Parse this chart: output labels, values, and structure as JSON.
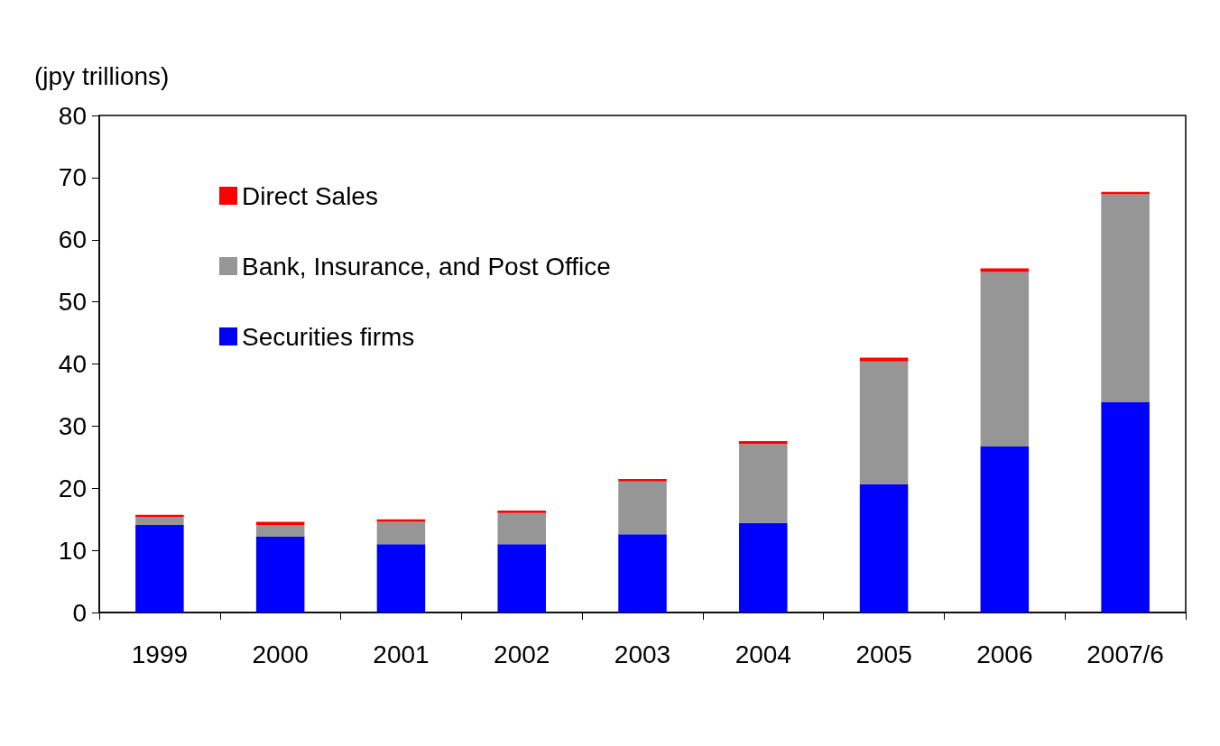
{
  "chart_data": {
    "type": "bar",
    "stacked": true,
    "ylabel": "(jpy trillions)",
    "categories": [
      "1999",
      "2000",
      "2001",
      "2002",
      "2003",
      "2004",
      "2005",
      "2006",
      "2007/6"
    ],
    "series": [
      {
        "name": "Securities firms",
        "color": "#0000ff",
        "values": [
          14.1,
          12.2,
          11.0,
          11.0,
          12.6,
          14.4,
          20.6,
          26.7,
          33.9
        ]
      },
      {
        "name": "Bank, Insurance, and Post Office",
        "color": "#969696",
        "values": [
          1.3,
          1.9,
          3.6,
          5.0,
          8.5,
          12.7,
          19.8,
          28.1,
          33.4
        ]
      },
      {
        "name": "Direct Sales",
        "color": "#ff0000",
        "values": [
          0.3,
          0.5,
          0.4,
          0.4,
          0.4,
          0.5,
          0.6,
          0.6,
          0.4
        ]
      }
    ],
    "ylim": [
      0,
      80
    ],
    "yticks": [
      0,
      10,
      20,
      30,
      40,
      50,
      60,
      70,
      80
    ],
    "grid": false,
    "legend": "top left"
  }
}
